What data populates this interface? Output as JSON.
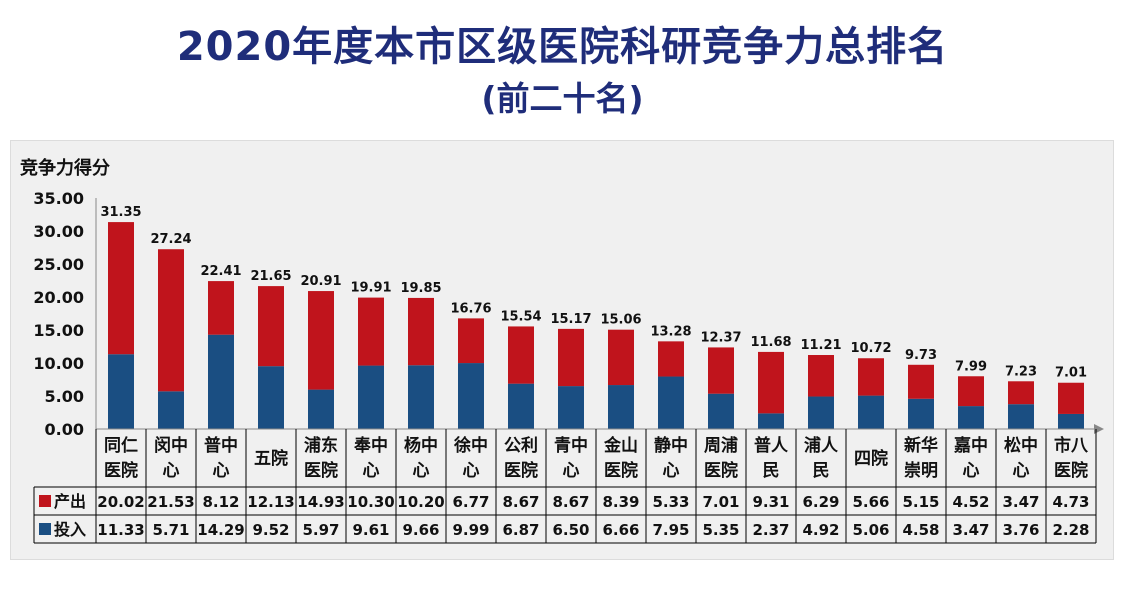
{
  "title": "2020年度本市区级医院科研竞争力总排名",
  "subtitle": "(前二十名)",
  "chart_data": {
    "type": "bar",
    "stacked": true,
    "ylabel": "竞争力得分",
    "ylim": [
      0,
      35
    ],
    "yticks": [
      "0.00",
      "5.00",
      "10.00",
      "15.00",
      "20.00",
      "25.00",
      "30.00",
      "35.00"
    ],
    "categories": [
      [
        "同仁",
        "医院"
      ],
      [
        "闵中",
        "心"
      ],
      [
        "普中",
        "心"
      ],
      [
        "五院"
      ],
      [
        "浦东",
        "医院"
      ],
      [
        "奉中",
        "心"
      ],
      [
        "杨中",
        "心"
      ],
      [
        "徐中",
        "心"
      ],
      [
        "公利",
        "医院"
      ],
      [
        "青中",
        "心"
      ],
      [
        "金山",
        "医院"
      ],
      [
        "静中",
        "心"
      ],
      [
        "周浦",
        "医院"
      ],
      [
        "普人",
        "民"
      ],
      [
        "浦人",
        "民"
      ],
      [
        "四院"
      ],
      [
        "新华",
        "崇明"
      ],
      [
        "嘉中",
        "心"
      ],
      [
        "松中",
        "心"
      ],
      [
        "市八",
        "医院"
      ]
    ],
    "totals": [
      "31.35",
      "27.24",
      "22.41",
      "21.65",
      "20.91",
      "19.91",
      "19.85",
      "16.76",
      "15.54",
      "15.17",
      "15.06",
      "13.28",
      "12.37",
      "11.68",
      "11.21",
      "10.72",
      "9.73",
      "7.99",
      "7.23",
      "7.01"
    ],
    "series": [
      {
        "name": "投入",
        "color": "#1a4e82",
        "values": [
          "11.33",
          "5.71",
          "14.29",
          "9.52",
          "5.97",
          "9.61",
          "9.66",
          "9.99",
          "6.87",
          "6.50",
          "6.66",
          "7.95",
          "5.35",
          "2.37",
          "4.92",
          "5.06",
          "4.58",
          "3.47",
          "3.76",
          "2.28"
        ]
      },
      {
        "name": "产出",
        "color": "#c0141c",
        "values": [
          "20.02",
          "21.53",
          "8.12",
          "12.13",
          "14.93",
          "10.30",
          "10.20",
          "6.77",
          "8.67",
          "8.67",
          "8.39",
          "5.33",
          "7.01",
          "9.31",
          "6.29",
          "5.66",
          "5.15",
          "4.52",
          "3.47",
          "4.73"
        ]
      }
    ],
    "table_rows": [
      "产出",
      "投入"
    ],
    "grid": false,
    "legend": "data-table"
  }
}
